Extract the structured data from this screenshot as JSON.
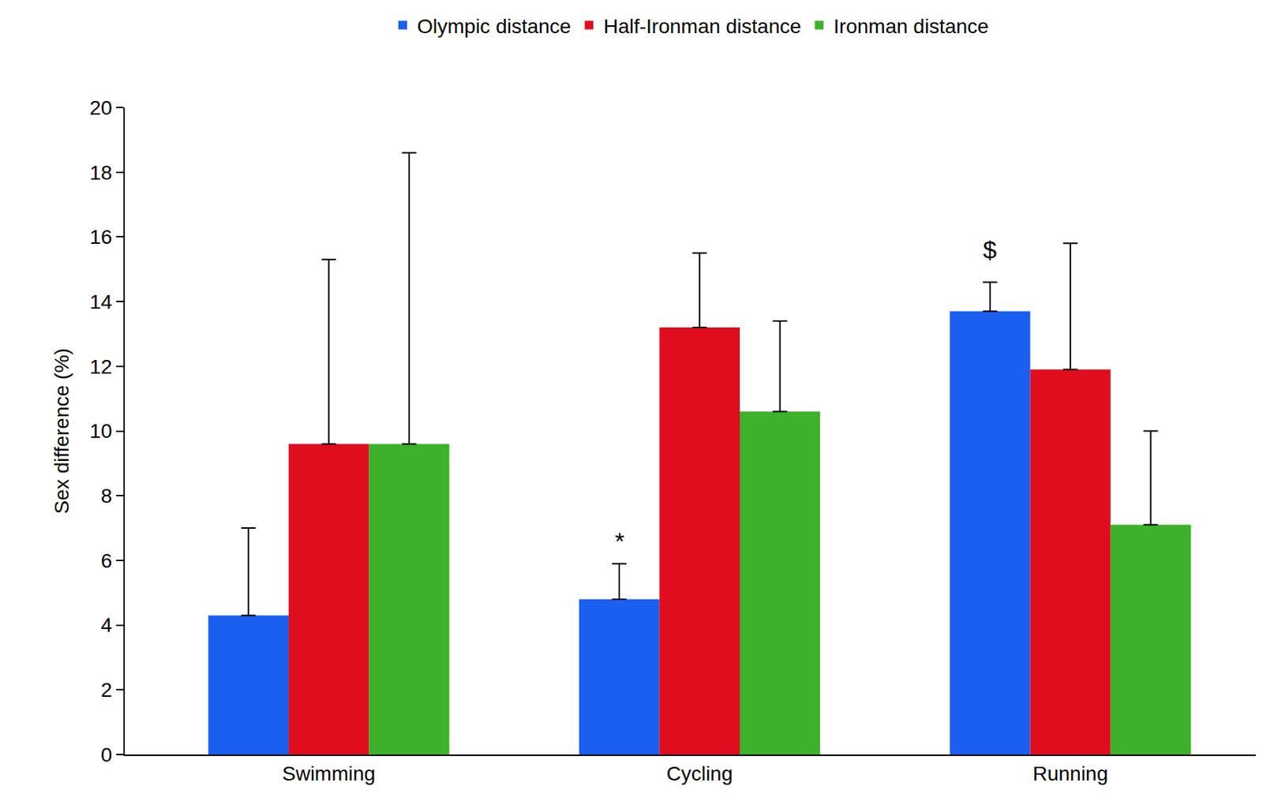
{
  "chart_data": {
    "type": "bar",
    "y_label": "Sex difference (%)",
    "categories": [
      "Swimming",
      "Cycling",
      "Running"
    ],
    "series": [
      {
        "name": "Olympic distance",
        "color": "#1a5ff0",
        "values": [
          4.3,
          4.8,
          13.7
        ],
        "errors": [
          2.7,
          1.1,
          0.9
        ]
      },
      {
        "name": "Half-Ironman distance",
        "color": "#e00d1f",
        "values": [
          9.6,
          13.2,
          11.9
        ],
        "errors": [
          5.7,
          2.3,
          3.9
        ]
      },
      {
        "name": "Ironman distance",
        "color": "#3db12b",
        "values": [
          9.6,
          10.6,
          7.1
        ],
        "errors": [
          9.0,
          2.8,
          2.9
        ]
      }
    ],
    "ylim": [
      0,
      20
    ],
    "yticks": [
      0,
      2,
      4,
      6,
      8,
      10,
      12,
      14,
      16,
      18,
      20
    ],
    "grid": false,
    "legend": "top",
    "annotations": [
      {
        "text": "*",
        "category": "Cycling",
        "series": "Olympic distance",
        "y": 6.6
      },
      {
        "text": "$",
        "category": "Running",
        "series": "Olympic distance",
        "y": 15.6
      }
    ]
  }
}
